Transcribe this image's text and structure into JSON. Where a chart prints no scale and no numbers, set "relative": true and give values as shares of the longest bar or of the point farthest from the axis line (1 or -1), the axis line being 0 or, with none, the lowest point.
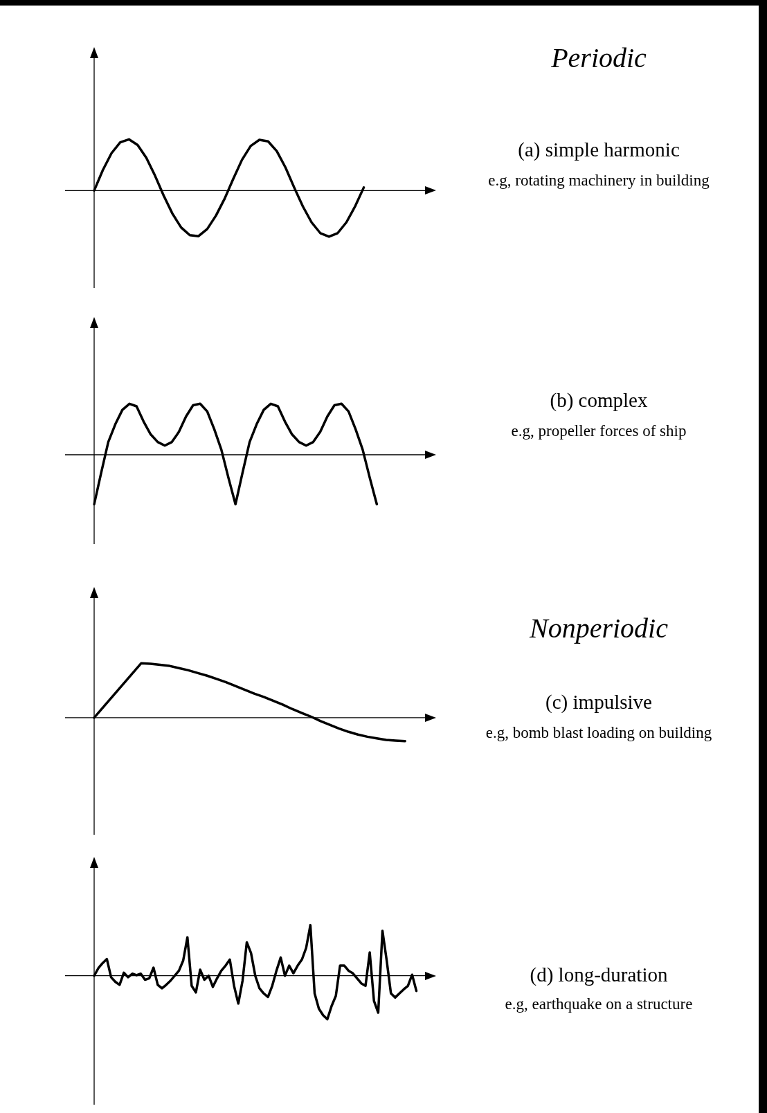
{
  "chart_data": [
    {
      "type": "line",
      "annotations": [
        "Periodic",
        "(a) simple harmonic",
        "e.g, rotating machinery in building"
      ],
      "relative": true,
      "grid": false,
      "legend": false,
      "tick_labels": false,
      "marker": "none",
      "categories": [
        null,
        null,
        null,
        null,
        null,
        null,
        null,
        null,
        null,
        null,
        null,
        null,
        null,
        null,
        null,
        null,
        null,
        null,
        null,
        null,
        null,
        null,
        null,
        null,
        null,
        null,
        null,
        null,
        null,
        null,
        null,
        null,
        null,
        null,
        null,
        null,
        null,
        null,
        null,
        null
      ],
      "series": [
        {
          "color": "#000000",
          "values": [
            0,
            0.4,
            0.73,
            0.94,
            1,
            0.89,
            0.64,
            0.29,
            -0.1,
            -0.45,
            -0.72,
            -0.87,
            -0.89,
            -0.75,
            -0.49,
            -0.16,
            0.23,
            0.6,
            0.87,
            0.99,
            0.96,
            0.77,
            0.45,
            0.06,
            -0.31,
            -0.62,
            -0.83,
            -0.9,
            -0.83,
            -0.62,
            -0.31,
            0.06,
            null,
            null,
            null,
            null,
            null,
            null,
            null,
            null
          ]
        }
      ]
    },
    {
      "type": "line",
      "annotations": [
        "(b) complex",
        "e.g, propeller forces of ship"
      ],
      "relative": true,
      "grid": false,
      "legend": false,
      "tick_labels": false,
      "marker": "none",
      "categories": [
        null,
        null,
        null,
        null,
        null,
        null,
        null,
        null,
        null,
        null,
        null,
        null,
        null,
        null,
        null,
        null,
        null,
        null,
        null,
        null,
        null,
        null,
        null,
        null,
        null,
        null,
        null,
        null,
        null,
        null,
        null,
        null,
        null,
        null,
        null,
        null,
        null,
        null,
        null,
        null,
        null,
        null,
        null,
        null,
        null,
        null,
        null,
        null,
        null
      ],
      "series": [
        {
          "color": "#000000",
          "values": [
            -0.97,
            -0.35,
            0.25,
            0.6,
            0.88,
            1,
            0.95,
            0.65,
            0.4,
            0.25,
            0.18,
            0.25,
            0.45,
            0.75,
            0.97,
            1,
            0.85,
            0.5,
            0.1,
            -0.45,
            -0.97,
            -0.35,
            0.25,
            0.6,
            0.88,
            1,
            0.95,
            0.65,
            0.4,
            0.25,
            0.18,
            0.25,
            0.45,
            0.75,
            0.97,
            1,
            0.85,
            0.5,
            0.1,
            -0.45,
            -0.97,
            null,
            null,
            null,
            null,
            null,
            null,
            null,
            null
          ]
        }
      ]
    },
    {
      "type": "line",
      "annotations": [
        "Nonperiodic",
        "(c) impulsive",
        "e.g, bomb blast loading on building"
      ],
      "relative": true,
      "grid": false,
      "legend": false,
      "tick_labels": false,
      "marker": "none",
      "categories": [
        null,
        null,
        null,
        null,
        null,
        null,
        null,
        null,
        null,
        null,
        null,
        null,
        null,
        null,
        null,
        null,
        null,
        null,
        null,
        null,
        null,
        null,
        null,
        null,
        null,
        null,
        null,
        null,
        null,
        null,
        null,
        null,
        null,
        null,
        null,
        null,
        null
      ],
      "series": [
        {
          "color": "#000000",
          "values": [
            0,
            0.2,
            0.4,
            0.6,
            0.8,
            1,
            0.99,
            0.97,
            0.95,
            0.91,
            0.87,
            0.82,
            0.77,
            0.71,
            0.65,
            0.58,
            0.51,
            0.44,
            0.38,
            0.31,
            0.24,
            0.16,
            0.09,
            0.02,
            -0.06,
            -0.13,
            -0.2,
            -0.26,
            -0.31,
            -0.35,
            -0.38,
            -0.41,
            -0.42,
            -0.43,
            null,
            null,
            null
          ]
        }
      ]
    },
    {
      "type": "line",
      "annotations": [
        "(d) long-duration",
        "e.g, earthquake on a structure"
      ],
      "relative": true,
      "grid": false,
      "legend": false,
      "tick_labels": false,
      "marker": "none",
      "categories": [
        null,
        null,
        null,
        null,
        null,
        null,
        null,
        null,
        null,
        null,
        null,
        null,
        null,
        null,
        null,
        null,
        null,
        null,
        null,
        null,
        null,
        null,
        null,
        null,
        null,
        null,
        null,
        null,
        null,
        null,
        null,
        null,
        null,
        null,
        null,
        null,
        null,
        null,
        null,
        null,
        null,
        null,
        null,
        null,
        null,
        null,
        null,
        null,
        null,
        null,
        null,
        null,
        null,
        null,
        null,
        null,
        null,
        null,
        null,
        null,
        null,
        null,
        null,
        null,
        null,
        null,
        null,
        null,
        null,
        null,
        null,
        null,
        null,
        null,
        null,
        null,
        null,
        null,
        null,
        null,
        null
      ],
      "series": [
        {
          "color": "#000000",
          "values": [
            0,
            0.15,
            0.25,
            0.33,
            -0.03,
            -0.12,
            -0.18,
            0.06,
            -0.03,
            0.04,
            0.01,
            0.04,
            -0.08,
            -0.05,
            0.16,
            -0.18,
            -0.25,
            -0.18,
            -0.1,
            0,
            0.1,
            0.3,
            0.76,
            -0.2,
            -0.33,
            0.12,
            -0.08,
            0,
            -0.22,
            -0.05,
            0.1,
            0.2,
            0.32,
            -0.2,
            -0.55,
            -0.1,
            0.66,
            0.45,
            0,
            -0.25,
            -0.35,
            -0.42,
            -0.2,
            0.1,
            0.36,
            0,
            0.2,
            0.05,
            0.2,
            0.32,
            0.55,
            1,
            -0.35,
            -0.65,
            -0.78,
            -0.86,
            -0.6,
            -0.4,
            0.2,
            0.2,
            0.1,
            0.05,
            -0.05,
            -0.15,
            -0.2,
            0.46,
            -0.5,
            -0.73,
            0.89,
            0.3,
            -0.35,
            -0.43,
            -0.35,
            -0.27,
            -0.2,
            0.02,
            -0.3,
            null,
            null,
            null,
            null
          ]
        }
      ]
    }
  ]
}
